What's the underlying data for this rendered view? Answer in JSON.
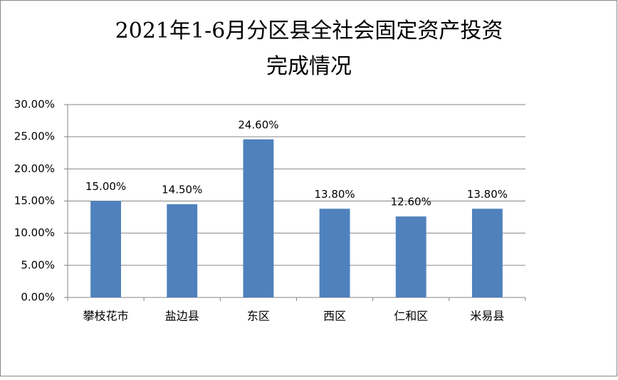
{
  "chart_data": {
    "type": "bar",
    "title": [
      "2021年1-6月分区县全社会固定资产投资",
      "完成情况"
    ],
    "categories": [
      "攀枝花市",
      "盐边县",
      "东区",
      "西区",
      "仁和区",
      "米易县"
    ],
    "values": [
      15,
      14.5,
      24.6,
      13.8,
      12.6,
      13.8
    ],
    "value_labels": [
      "15.00%",
      "14.50%",
      "24.60%",
      "13.80%",
      "12.60%",
      "13.80%"
    ],
    "color": "#4f81bd",
    "ylim": [
      0,
      30
    ],
    "yticks": [
      {
        "value": 0,
        "label": "0.00%"
      },
      {
        "value": 5,
        "label": "5.00%"
      },
      {
        "value": 10,
        "label": "10.00%"
      },
      {
        "value": 15,
        "label": "15.00%"
      },
      {
        "value": 20,
        "label": "20.00%"
      },
      {
        "value": 25,
        "label": "25.00%"
      },
      {
        "value": 30,
        "label": "30.00%"
      }
    ],
    "grid": true
  }
}
